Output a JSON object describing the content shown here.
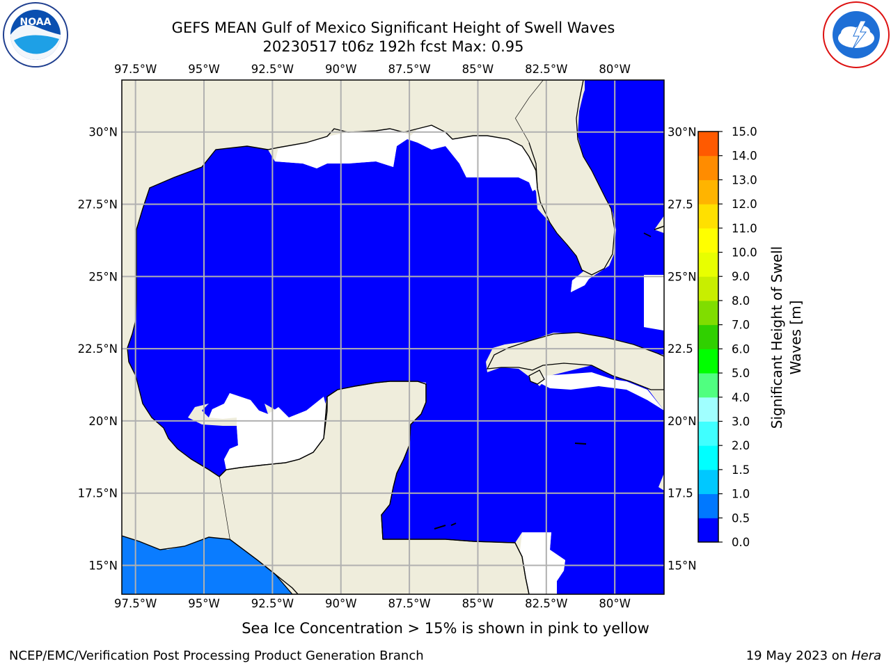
{
  "title": "GEFS MEAN Gulf of Mexico Significant Height of Swell Waves",
  "subtitle": "20230517 t06z 192h fcst   Max: 0.95",
  "note": "Sea Ice Concentration > 15% is shown in pink to yellow",
  "footer": {
    "left": "NCEP/EMC/Verification Post Processing Product Generation Branch",
    "right_prefix": "19 May 2023 on ",
    "right_machine": "Hera"
  },
  "logos": {
    "left": "NOAA",
    "left_ring": "NATIONAL OCEANIC AND ATMOSPHERIC ADMINISTRATION · U.S. DEPARTMENT OF COMMERCE",
    "right_ring": "NATIONAL WEATHER SERVICE"
  },
  "map": {
    "lon_ticks": [
      "97.5°W",
      "95°W",
      "92.5°W",
      "90°W",
      "87.5°W",
      "85°W",
      "82.5°W",
      "80°W"
    ],
    "lon_values": [
      -97.5,
      -95,
      -92.5,
      -90,
      -87.5,
      -85,
      -82.5,
      -80
    ],
    "lat_ticks_left": [
      "30°N",
      "27.5°N",
      "25°N",
      "22.5°N",
      "20°N",
      "17.5°N",
      "15°N"
    ],
    "lat_ticks_right": [
      "30°N",
      "27.5",
      "25°N",
      "22.5",
      "20°N",
      "17.5",
      "15°N"
    ],
    "lat_values": [
      30,
      27.5,
      25,
      22.5,
      20,
      17.5,
      15
    ],
    "lon_range": [
      -98,
      -78.2
    ],
    "lat_range": [
      14,
      31.8
    ],
    "colors": {
      "land": "#efeddc",
      "sea_low": "#0000ff",
      "sea_mid": "#0a7cff",
      "nodata": "#ffffff",
      "grid": "#b0b0b0",
      "coast": "#000000"
    }
  },
  "colorbar": {
    "label": "Significant Height of Swell Waves [m]",
    "label_line1": "Significant Height of Swell",
    "label_line2": "Waves [m]",
    "tick_labels": [
      "15.0",
      "14.0",
      "13.0",
      "12.0",
      "11.0",
      "10.0",
      "9.0",
      "8.0",
      "7.0",
      "6.0",
      "5.0",
      "4.0",
      "3.0",
      "2.0",
      "1.5",
      "1.0",
      "0.5",
      "0.0"
    ],
    "segment_colors": [
      "#0000ff",
      "#0078ff",
      "#00c8ff",
      "#00ffff",
      "#40ffff",
      "#a0ffff",
      "#50ff80",
      "#00ff00",
      "#30d000",
      "#80dd00",
      "#c8ee00",
      "#e8ff00",
      "#ffff00",
      "#ffe000",
      "#ffb400",
      "#ff8c00",
      "#ff5a00",
      "#ff1400",
      "#ff0000"
    ]
  }
}
